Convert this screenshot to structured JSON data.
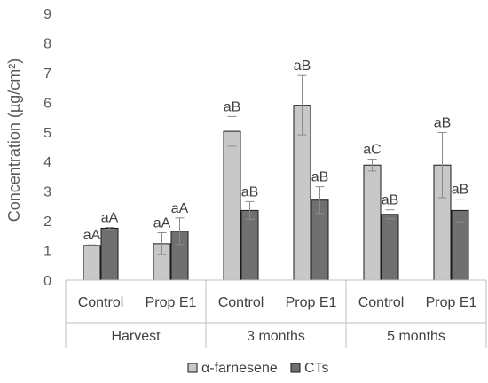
{
  "chart_data": {
    "type": "bar",
    "ylabel": "Concentration (µg/cm²)",
    "ylim": [
      0,
      9
    ],
    "yticks": [
      "0",
      "1",
      "2",
      "3",
      "4",
      "5",
      "6",
      "7",
      "8",
      "9"
    ],
    "grid": false,
    "legend_position": "bottom",
    "groups": [
      {
        "label": "Harvest",
        "categories": [
          "Control",
          "Prop E1"
        ]
      },
      {
        "label": "3 months",
        "categories": [
          "Control",
          "Prop E1"
        ]
      },
      {
        "label": "5 months",
        "categories": [
          "Control",
          "Prop E1"
        ]
      }
    ],
    "series": [
      {
        "name": "α-farnesene",
        "color": "#c8c8c8",
        "values": [
          1.17,
          1.23,
          5.02,
          5.9,
          3.88,
          3.88
        ],
        "errors": [
          0.02,
          0.37,
          0.5,
          1.0,
          0.2,
          1.1
        ],
        "labels": [
          "aA",
          "aA",
          "aB",
          "aB",
          "aC",
          "aB"
        ]
      },
      {
        "name": "CTs",
        "color": "#707070",
        "values": [
          1.75,
          1.65,
          2.35,
          2.7,
          2.22,
          2.35
        ],
        "errors": [
          0.03,
          0.45,
          0.3,
          0.45,
          0.15,
          0.38
        ],
        "labels": [
          "aA",
          "aA",
          "aB",
          "aB",
          "aB",
          "aB"
        ]
      }
    ]
  }
}
